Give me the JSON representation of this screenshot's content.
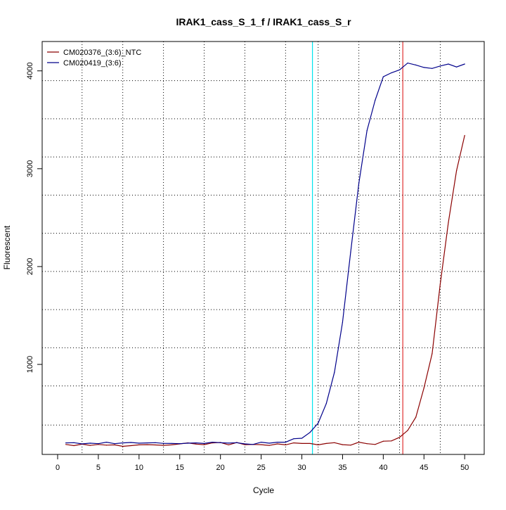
{
  "chart_data": {
    "type": "line",
    "title": "IRAK1_cass_S_1_f / IRAK1_cass_S_r",
    "xlabel": "Cycle",
    "ylabel": "Fluorescent",
    "xlim": [
      -1.9,
      52.4
    ],
    "ylim": [
      80,
      4300
    ],
    "x_ticks": [
      0,
      5,
      10,
      15,
      20,
      25,
      30,
      35,
      40,
      45,
      50
    ],
    "y_ticks": [
      1000,
      2000,
      3000,
      4000
    ],
    "grid": "dotted",
    "grid_x": [
      3,
      8,
      13,
      18,
      23,
      28,
      32,
      37,
      42,
      47
    ],
    "grid_y": [
      380,
      780,
      1170,
      1560,
      1950,
      2340,
      2730,
      3120,
      3510,
      3900
    ],
    "vlines": [
      {
        "x": 31.3,
        "color": "#00e5ee"
      },
      {
        "x": 42.4,
        "color": "#e03030"
      }
    ],
    "legend_position": "top-left",
    "series": [
      {
        "name": "CM020376_(3:6)_NTC",
        "color": "#8b0000",
        "x": [
          1,
          2,
          3,
          4,
          5,
          6,
          7,
          8,
          9,
          10,
          11,
          12,
          13,
          14,
          15,
          16,
          17,
          18,
          19,
          20,
          21,
          22,
          23,
          24,
          25,
          26,
          27,
          28,
          29,
          30,
          31,
          32,
          33,
          34,
          35,
          36,
          37,
          38,
          39,
          40,
          41,
          42,
          43,
          44,
          45,
          46,
          47,
          48,
          49,
          50
        ],
        "values": [
          182,
          170,
          185,
          172,
          182,
          175,
          178,
          163,
          170,
          178,
          180,
          177,
          173,
          178,
          188,
          198,
          186,
          180,
          198,
          202,
          178,
          202,
          180,
          182,
          180,
          172,
          188,
          178,
          198,
          192,
          192,
          178,
          192,
          200,
          180,
          175,
          205,
          190,
          182,
          215,
          218,
          255,
          325,
          460,
          760,
          1110,
          1820,
          2450,
          2980,
          3340
        ]
      },
      {
        "name": "CM020419_(3:6)",
        "color": "#00008b",
        "x": [
          1,
          2,
          3,
          4,
          5,
          6,
          7,
          8,
          9,
          10,
          11,
          12,
          13,
          14,
          15,
          16,
          17,
          18,
          19,
          20,
          21,
          22,
          23,
          24,
          25,
          26,
          27,
          28,
          29,
          30,
          31,
          32,
          33,
          34,
          35,
          36,
          37,
          38,
          39,
          40,
          41,
          42,
          43,
          44,
          45,
          46,
          47,
          48,
          49,
          50
        ],
        "values": [
          198,
          200,
          188,
          195,
          190,
          205,
          190,
          198,
          202,
          195,
          198,
          200,
          193,
          192,
          190,
          195,
          198,
          192,
          205,
          200,
          196,
          200,
          188,
          182,
          205,
          195,
          205,
          205,
          240,
          245,
          305,
          400,
          600,
          920,
          1430,
          2150,
          2850,
          3390,
          3700,
          3940,
          3980,
          4010,
          4080,
          4060,
          4035,
          4025,
          4050,
          4070,
          4040,
          4070
        ]
      }
    ]
  }
}
